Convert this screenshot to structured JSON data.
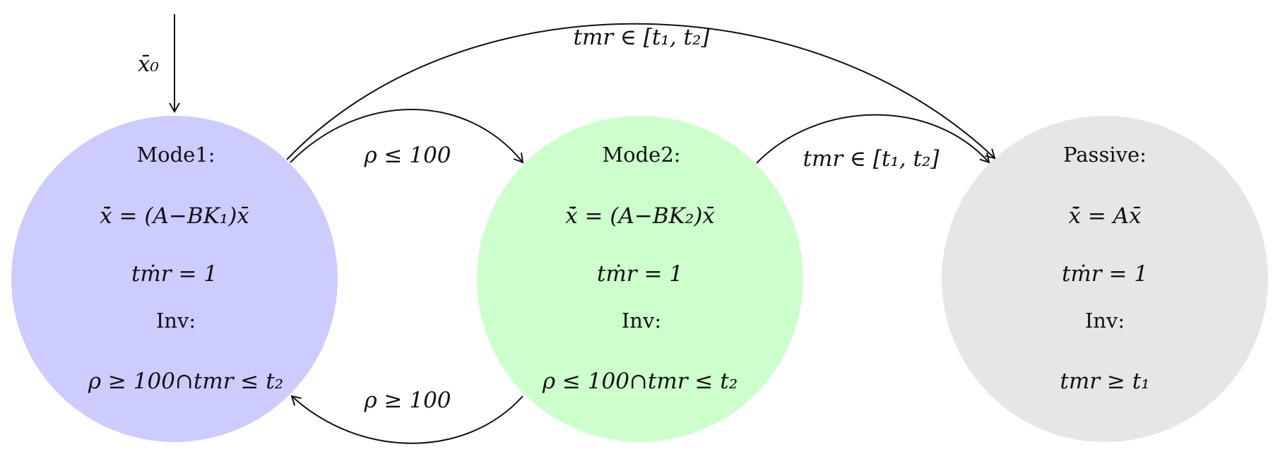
{
  "initial": {
    "label": "x̄₀"
  },
  "states": [
    {
      "id": "mode1",
      "color": "#ccccff",
      "title": "Mode1:",
      "flow": "ẋ̄ = (A−BK₁)x̄",
      "clock": "tṁr = 1",
      "inv_label": "Inv:",
      "invariant": "ρ ≥ 100∩tmr ≤ t₂"
    },
    {
      "id": "mode2",
      "color": "#ccffcc",
      "title": "Mode2:",
      "flow": "ẋ̄ = (A−BK₂)x̄",
      "clock": "tṁr = 1",
      "inv_label": "Inv:",
      "invariant": "ρ ≤ 100∩tmr ≤ t₂"
    },
    {
      "id": "passive",
      "color": "#e6e6e6",
      "title": "Passive:",
      "flow": "ẋ̄ = Ax̄",
      "clock": "tṁr = 1",
      "inv_label": "Inv:",
      "invariant": "tmr ≥ t₁"
    }
  ],
  "transitions": [
    {
      "from": "mode1",
      "to": "mode2",
      "guard": "ρ ≤ 100"
    },
    {
      "from": "mode2",
      "to": "mode1",
      "guard": "ρ ≥ 100"
    },
    {
      "from": "mode2",
      "to": "passive",
      "guard": "tmr ∈ [t₁, t₂]"
    },
    {
      "from": "mode1",
      "to": "passive",
      "guard": "tmr ∈ [t₁, t₂]"
    }
  ]
}
